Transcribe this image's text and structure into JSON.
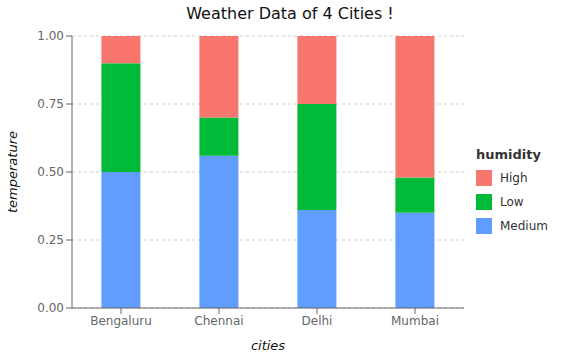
{
  "chart_data": {
    "type": "bar",
    "stacked": true,
    "title": "Weather Data of 4 Cities !",
    "xlabel": "cities",
    "ylabel": "temperature",
    "legend_title": "humidity",
    "categories": [
      "Bengaluru",
      "Chennai",
      "Delhi",
      "Mumbai"
    ],
    "series": [
      {
        "name": "Medium",
        "color": "#619CFF",
        "values": [
          0.5,
          0.56,
          0.36,
          0.35
        ]
      },
      {
        "name": "Low",
        "color": "#00BA38",
        "values": [
          0.4,
          0.14,
          0.39,
          0.13
        ]
      },
      {
        "name": "High",
        "color": "#F8766D",
        "values": [
          0.1,
          0.3,
          0.25,
          0.52
        ]
      }
    ],
    "ylim": [
      0,
      1.0
    ],
    "yticks": [
      {
        "value": 0,
        "label": "0.00"
      },
      0.25,
      {
        "value": 0.5,
        "label": "0.50"
      },
      0.75,
      {
        "value": 1,
        "label": "1.00"
      }
    ],
    "grid": true,
    "legend": "right"
  }
}
